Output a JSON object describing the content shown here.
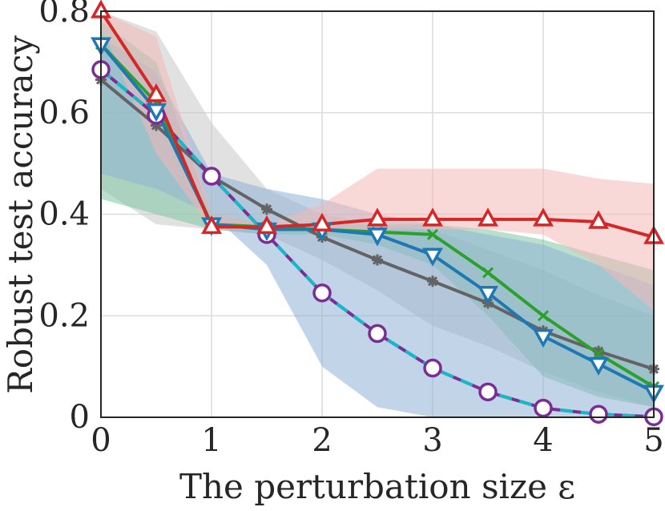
{
  "chart_data": {
    "type": "line",
    "title": "",
    "xlabel": "The perturbation size ε",
    "ylabel": "Robust test accuracy",
    "xlim": [
      0,
      5
    ],
    "ylim": [
      0,
      0.8
    ],
    "grid": true,
    "x_ticks": [
      0,
      1,
      2,
      3,
      4,
      5
    ],
    "x_tick_labels": [
      "0",
      "1",
      "2",
      "3",
      "4",
      "5"
    ],
    "y_ticks": [
      0,
      0.2,
      0.4,
      0.6,
      0.8
    ],
    "y_tick_labels": [
      "0",
      "0.2",
      "0.4",
      "0.6",
      "0.8"
    ],
    "x": [
      0,
      0.5,
      1,
      1.5,
      2,
      2.5,
      3,
      3.5,
      4,
      4.5,
      5
    ],
    "bands": [
      {
        "name": "gray-band",
        "color": "#c8c8c8",
        "upper": [
          0.8,
          0.76,
          0.58,
          0.45,
          0.4,
          0.38,
          0.37,
          0.33,
          0.29,
          0.24,
          0.2
        ],
        "lower": [
          0.45,
          0.38,
          0.37,
          0.36,
          0.31,
          0.25,
          0.18,
          0.14,
          0.09,
          0.05,
          0.02
        ]
      },
      {
        "name": "green-band",
        "color": "#7fc6a4",
        "upper": [
          0.78,
          0.7,
          0.4,
          0.38,
          0.38,
          0.38,
          0.38,
          0.37,
          0.35,
          0.32,
          0.29
        ],
        "lower": [
          0.43,
          0.4,
          0.37,
          0.36,
          0.36,
          0.34,
          0.3,
          0.2,
          0.08,
          0.04,
          0.02
        ]
      },
      {
        "name": "blue-band",
        "color": "#8fb3d6",
        "upper": [
          0.75,
          0.68,
          0.48,
          0.45,
          0.43,
          0.4,
          0.38,
          0.36,
          0.34,
          0.3,
          0.26
        ],
        "lower": [
          0.48,
          0.45,
          0.4,
          0.3,
          0.1,
          0.02,
          0.0,
          0.0,
          0.0,
          0.0,
          0.0
        ]
      },
      {
        "name": "red-band",
        "color": "#f4b8b8",
        "upper": [
          0.8,
          0.75,
          0.4,
          0.38,
          0.42,
          0.49,
          0.49,
          0.49,
          0.49,
          0.47,
          0.46
        ],
        "lower": [
          0.77,
          0.52,
          0.37,
          0.37,
          0.37,
          0.37,
          0.37,
          0.37,
          0.36,
          0.3,
          0.21
        ]
      }
    ],
    "series": [
      {
        "name": "gray-asterisk",
        "color": "#636363",
        "marker": "asterisk",
        "values": [
          0.665,
          0.575,
          0.475,
          0.41,
          0.355,
          0.31,
          0.268,
          0.225,
          0.17,
          0.13,
          0.095
        ]
      },
      {
        "name": "purple-circle",
        "color": "#7b2d93",
        "dash_color": "#19b8c8",
        "marker": "circle",
        "values": [
          0.685,
          0.595,
          0.475,
          0.36,
          0.245,
          0.165,
          0.097,
          0.05,
          0.018,
          0.006,
          0.001
        ]
      },
      {
        "name": "green-cross",
        "color": "#2ca02c",
        "marker": "cross",
        "values": [
          0.735,
          0.62,
          0.38,
          0.375,
          0.37,
          0.365,
          0.36,
          0.285,
          0.2,
          0.125,
          0.06
        ]
      },
      {
        "name": "blue-triangle-down",
        "color": "#1f77b4",
        "marker": "triangle-down",
        "values": [
          0.735,
          0.605,
          0.38,
          0.37,
          0.37,
          0.36,
          0.32,
          0.245,
          0.16,
          0.105,
          0.05
        ]
      },
      {
        "name": "red-triangle-up",
        "color": "#d62728",
        "marker": "triangle-up",
        "values": [
          0.8,
          0.635,
          0.375,
          0.375,
          0.38,
          0.39,
          0.39,
          0.39,
          0.39,
          0.385,
          0.355
        ]
      }
    ]
  }
}
